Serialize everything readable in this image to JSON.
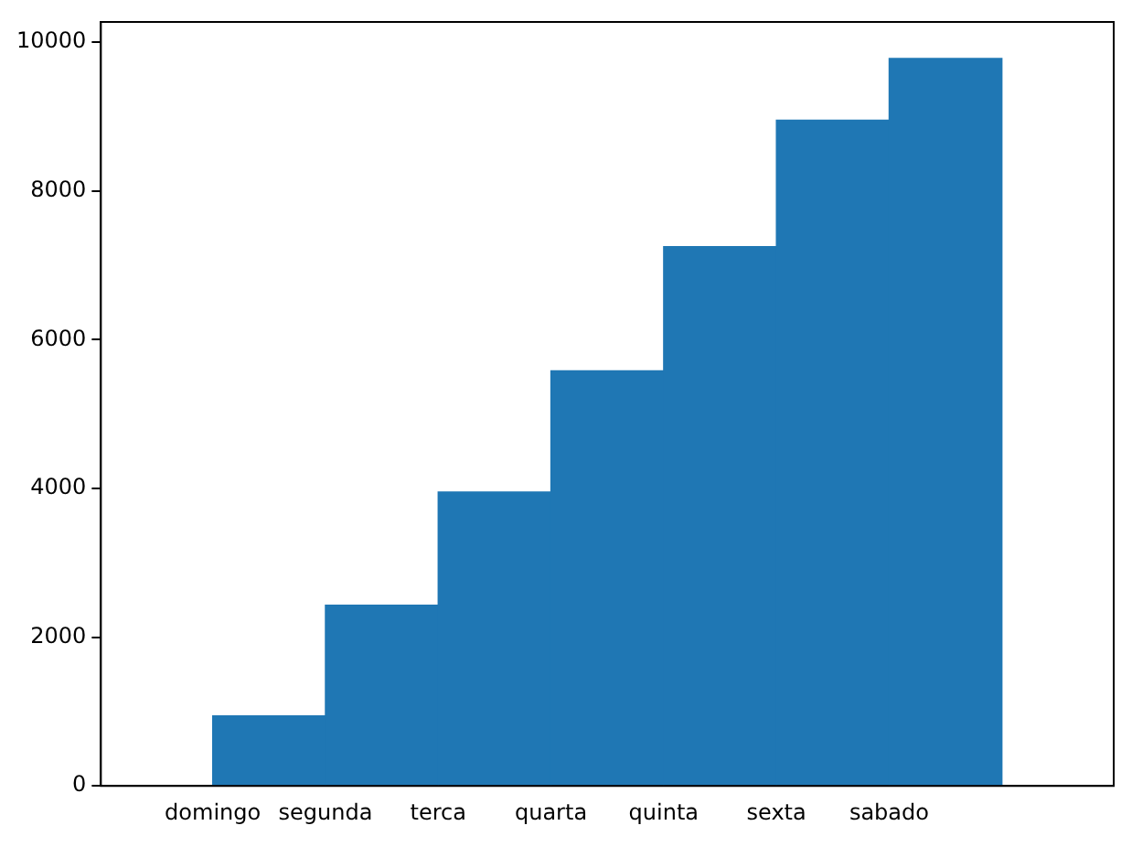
{
  "chart_data": {
    "type": "bar",
    "categories": [
      "domingo",
      "segunda",
      "terca",
      "quarta",
      "quinta",
      "sexta",
      "sabado"
    ],
    "values": [
      940,
      2430,
      3950,
      5580,
      7250,
      8950,
      9780
    ],
    "color": "#1f77b4",
    "ylim": [
      0,
      10270
    ],
    "yticks": [
      0,
      2000,
      4000,
      6000,
      8000,
      10000
    ],
    "grid": false,
    "legend": false
  }
}
